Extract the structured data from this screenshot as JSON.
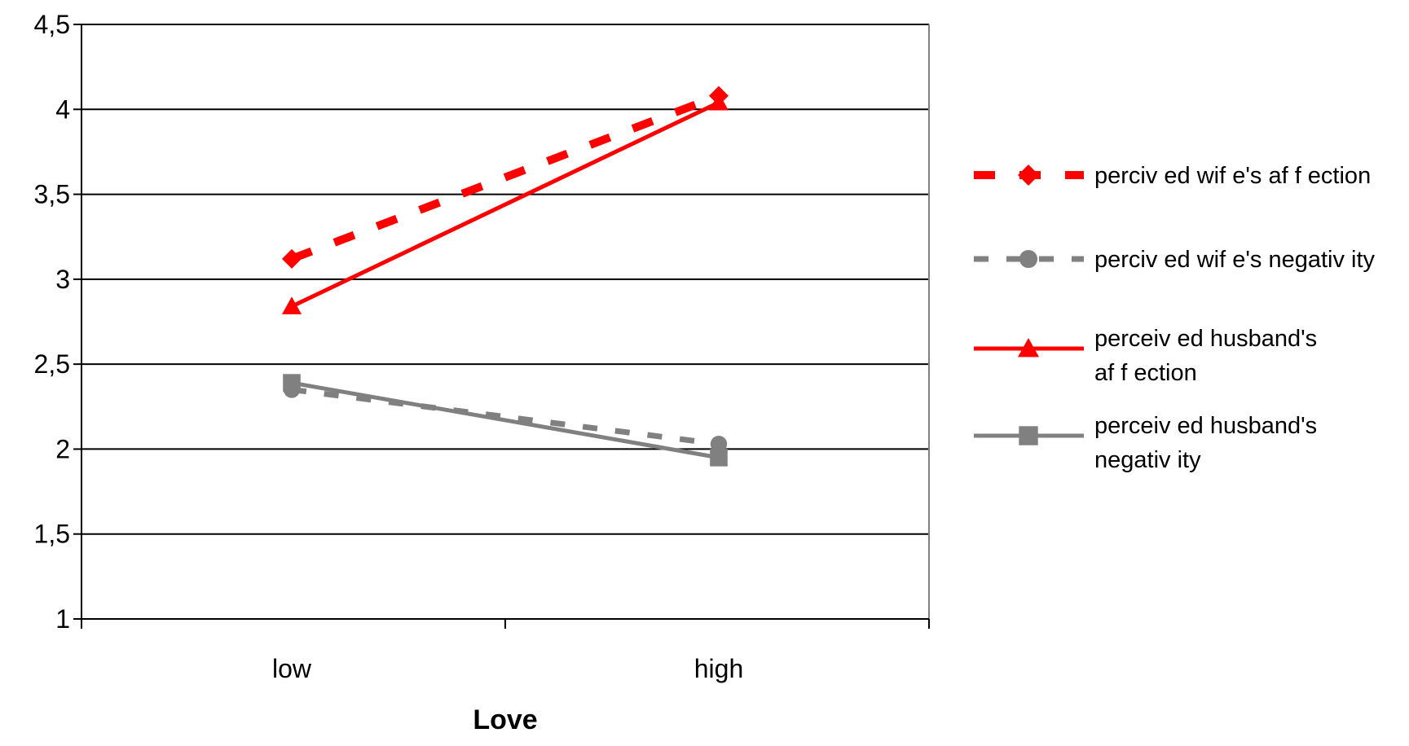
{
  "chart_data": {
    "type": "line",
    "title": "",
    "xlabel": "Love",
    "ylabel": "",
    "categories": [
      "low",
      "high"
    ],
    "ylim": [
      1,
      4.5
    ],
    "yticks": [
      "1",
      "1,5",
      "2",
      "2,5",
      "3",
      "3,5",
      "4",
      "4,5"
    ],
    "ytick_values": [
      1,
      1.5,
      2,
      2.5,
      3,
      3.5,
      4,
      4.5
    ],
    "grid": true,
    "legend": "right",
    "series": [
      {
        "name": "perciv ed wif e's af f ection",
        "values": [
          3.12,
          4.08
        ],
        "color": "#ff0000",
        "dash": "dashed",
        "marker": "diamond"
      },
      {
        "name": "perciv ed wif e's negativ ity",
        "values": [
          2.35,
          2.03
        ],
        "color": "#808080",
        "dash": "dashed",
        "marker": "circle"
      },
      {
        "name": "perceiv ed husband's af f ection",
        "values": [
          2.84,
          4.04
        ],
        "color": "#ff0000",
        "dash": "solid",
        "marker": "triangle"
      },
      {
        "name": "perceiv ed husband's negativ ity",
        "values": [
          2.39,
          1.95
        ],
        "color": "#808080",
        "dash": "solid",
        "marker": "square"
      }
    ],
    "legend_lines": [
      [
        "perciv ed wif e's af f ection"
      ],
      [
        "perciv ed wif e's negativ ity"
      ],
      [
        "perceiv ed husband's",
        "af f ection"
      ],
      [
        "perceiv ed husband's",
        "negativ ity"
      ]
    ]
  }
}
